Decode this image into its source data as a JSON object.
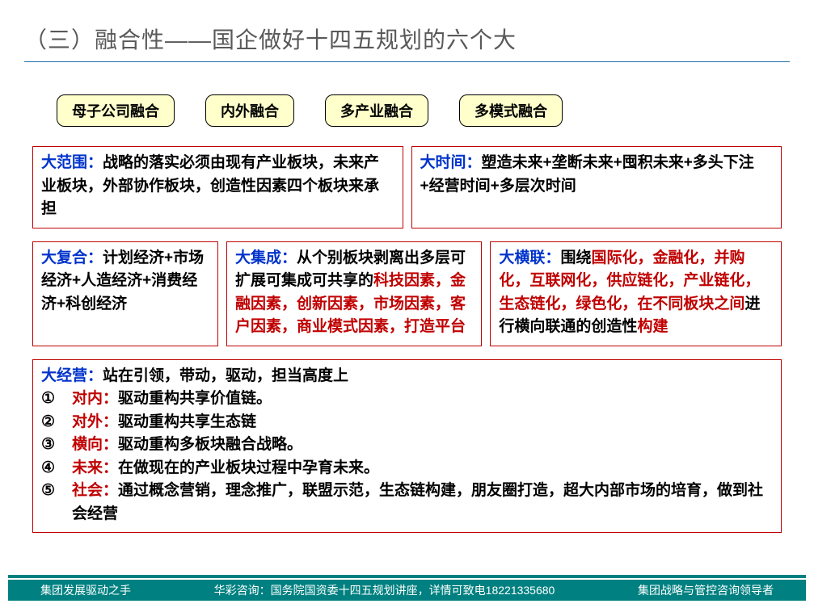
{
  "title": "（三）融合性——国企做好十四五规划的六个大",
  "tabs": [
    "母子公司融合",
    "内外融合",
    "多产业融合",
    "多模式融合"
  ],
  "box1": {
    "label": "大范围：",
    "text": "战略的落实必须由现有产业板块，未来产业板块，外部协作板块，创造性因素四个板块来承担"
  },
  "box2": {
    "label": "大时间：",
    "text": "塑造未来+垄断未来+囤积未来+多头下注+经营时间+多层次时间"
  },
  "box3": {
    "label": "大复合：",
    "text": "计划经济+市场经济+人造经济+消费经济+科创经济"
  },
  "box4": {
    "label": "大集成：",
    "t1": "从个别板块剥离出多层可扩展可集成可共享的",
    "t2": "科技因素，金融因素，创新因素，市场因素，客户因素，商业模式因素，打造平台"
  },
  "box5": {
    "label": "大横联：",
    "t1": "围绕",
    "t2": "国际化，金融化，并购化，互联网化，供应链化，产业链化，生态链化，绿色化，在不同板块之间",
    "t3": "进行横向联通的创造性",
    "t4": "构建"
  },
  "box6": {
    "label": "大经营：",
    "intro": "站在引领，带动，驱动，担当高度上",
    "items": [
      {
        "n": "①",
        "lead": "对内：",
        "rest": "驱动重构共享价值链。"
      },
      {
        "n": "②",
        "lead": "对外：",
        "rest": "驱动重构共享生态链"
      },
      {
        "n": "③",
        "lead": "横向：",
        "rest": "驱动重构多板块融合战略。"
      },
      {
        "n": "④",
        "lead": "未来：",
        "rest": "在做现在的产业板块过程中孕育未来。"
      },
      {
        "n": "⑤",
        "lead": "社会：",
        "rest": "通过概念营销，理念推广，联盟示范，生态链构建，朋友圈打造，超大内部市场的培育，做到社会经营"
      }
    ]
  },
  "footer": {
    "left": "集团发展驱动之手",
    "mid": "华彩咨询：国务院国资委十四五规划讲座，详情可致电18221335680",
    "right": "集团战略与管控咨询领导者"
  },
  "colors": {
    "title": "#595959",
    "underline": "#1f6fa8",
    "tab_bg": "#ffffcc",
    "tab_border": "#000000",
    "box_border": "#c00000",
    "label_blue": "#0033cc",
    "txt_red": "#c00000",
    "footer_bg": "#008080"
  }
}
